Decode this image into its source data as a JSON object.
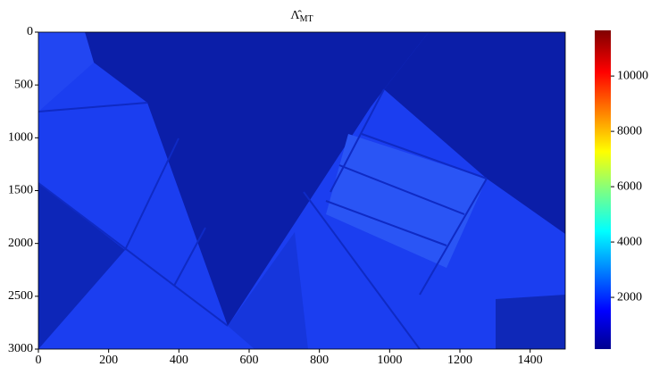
{
  "chart_data": {
    "type": "image",
    "title": "Λ̂",
    "title_subscript": "MT",
    "xlim": [
      0,
      1500
    ],
    "xticks": [
      0,
      200,
      400,
      600,
      800,
      1000,
      1200,
      1400
    ],
    "ylim": [
      3000,
      0
    ],
    "yticks": [
      0,
      500,
      1000,
      1500,
      2000,
      2500,
      3000
    ],
    "colormap": "jet",
    "clim": [
      130,
      11650
    ],
    "cticks": [
      2000,
      4000,
      6000,
      8000,
      10000
    ]
  }
}
